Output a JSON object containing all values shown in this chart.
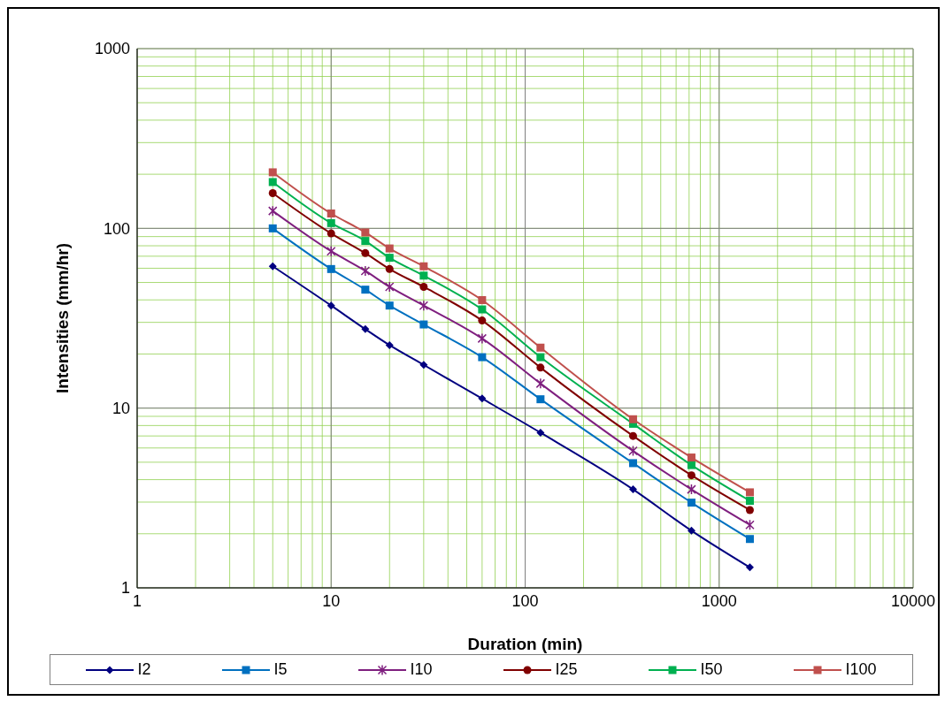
{
  "chart_data": {
    "type": "line",
    "xlabel": "Duration (min)",
    "ylabel": "Intensities (mm/hr)",
    "log": "xy",
    "x": [
      5,
      10,
      15,
      20,
      30,
      60,
      120,
      360,
      720,
      1440
    ],
    "xlim": [
      1,
      10000
    ],
    "xticks": [
      1,
      {
        "value": 2,
        "label": null
      },
      {
        "value": 3,
        "label": null
      },
      {
        "value": 4,
        "label": null
      },
      {
        "value": 5,
        "label": null
      },
      {
        "value": 6,
        "label": null
      },
      {
        "value": 7,
        "label": null
      },
      {
        "value": 8,
        "label": null
      },
      {
        "value": 9,
        "label": null
      },
      10,
      {
        "value": 20,
        "label": null
      },
      {
        "value": 30,
        "label": null
      },
      {
        "value": 40,
        "label": null
      },
      {
        "value": 50,
        "label": null
      },
      {
        "value": 60,
        "label": null
      },
      {
        "value": 70,
        "label": null
      },
      {
        "value": 80,
        "label": null
      },
      {
        "value": 90,
        "label": null
      },
      100,
      {
        "value": 200,
        "label": null
      },
      {
        "value": 300,
        "label": null
      },
      {
        "value": 400,
        "label": null
      },
      {
        "value": 500,
        "label": null
      },
      {
        "value": 600,
        "label": null
      },
      {
        "value": 700,
        "label": null
      },
      {
        "value": 800,
        "label": null
      },
      {
        "value": 900,
        "label": null
      },
      1000,
      {
        "value": 2000,
        "label": null
      },
      {
        "value": 3000,
        "label": null
      },
      {
        "value": 4000,
        "label": null
      },
      {
        "value": 5000,
        "label": null
      },
      {
        "value": 6000,
        "label": null
      },
      {
        "value": 7000,
        "label": null
      },
      {
        "value": 8000,
        "label": null
      },
      {
        "value": 9000,
        "label": null
      },
      10000
    ],
    "ylim": [
      1,
      1000
    ],
    "yticks": [
      1,
      {
        "value": 2,
        "label": null
      },
      {
        "value": 3,
        "label": null
      },
      {
        "value": 4,
        "label": null
      },
      {
        "value": 5,
        "label": null
      },
      {
        "value": 6,
        "label": null
      },
      {
        "value": 7,
        "label": null
      },
      {
        "value": 8,
        "label": null
      },
      {
        "value": 9,
        "label": null
      },
      10,
      {
        "value": 20,
        "label": null
      },
      {
        "value": 30,
        "label": null
      },
      {
        "value": 40,
        "label": null
      },
      {
        "value": 50,
        "label": null
      },
      {
        "value": 60,
        "label": null
      },
      {
        "value": 70,
        "label": null
      },
      {
        "value": 80,
        "label": null
      },
      {
        "value": 90,
        "label": null
      },
      100,
      {
        "value": 200,
        "label": null
      },
      {
        "value": 300,
        "label": null
      },
      {
        "value": 400,
        "label": null
      },
      {
        "value": 500,
        "label": null
      },
      {
        "value": 600,
        "label": null
      },
      {
        "value": 700,
        "label": null
      },
      {
        "value": 800,
        "label": null
      },
      {
        "value": 900,
        "label": null
      },
      1000
    ],
    "grid": true,
    "legend": "bottom",
    "line_style": "solid",
    "series": [
      {
        "name": "I2",
        "color": "#000080",
        "marker": "diamond",
        "values": [
          61.5,
          37.2,
          27.5,
          22.4,
          17.4,
          11.3,
          7.3,
          3.53,
          2.08,
          1.3
        ]
      },
      {
        "name": "I5",
        "color": "#0070c0",
        "marker": "square",
        "values": [
          100,
          59.4,
          45.6,
          37.2,
          29.2,
          19.2,
          11.2,
          4.94,
          2.98,
          1.87
        ]
      },
      {
        "name": "I10",
        "color": "#7f1f7f",
        "marker": "cross",
        "values": [
          125,
          74.6,
          58,
          47.3,
          37.2,
          24.4,
          13.7,
          5.78,
          3.53,
          2.24
        ]
      },
      {
        "name": "I25",
        "color": "#800000",
        "marker": "circle",
        "values": [
          157,
          93.7,
          72.8,
          59.4,
          47.3,
          30.7,
          16.8,
          7.0,
          4.23,
          2.71
        ]
      },
      {
        "name": "I50",
        "color": "#00b050",
        "marker": "square",
        "values": [
          181,
          107,
          85.1,
          68.6,
          54.6,
          35.4,
          19.2,
          8.18,
          4.82,
          3.05
        ]
      },
      {
        "name": "I100",
        "color": "#c0504d",
        "marker": "square",
        "values": [
          205,
          121,
          94.9,
          77.3,
          61.5,
          39.9,
          21.7,
          8.67,
          5.31,
          3.4
        ]
      }
    ]
  }
}
